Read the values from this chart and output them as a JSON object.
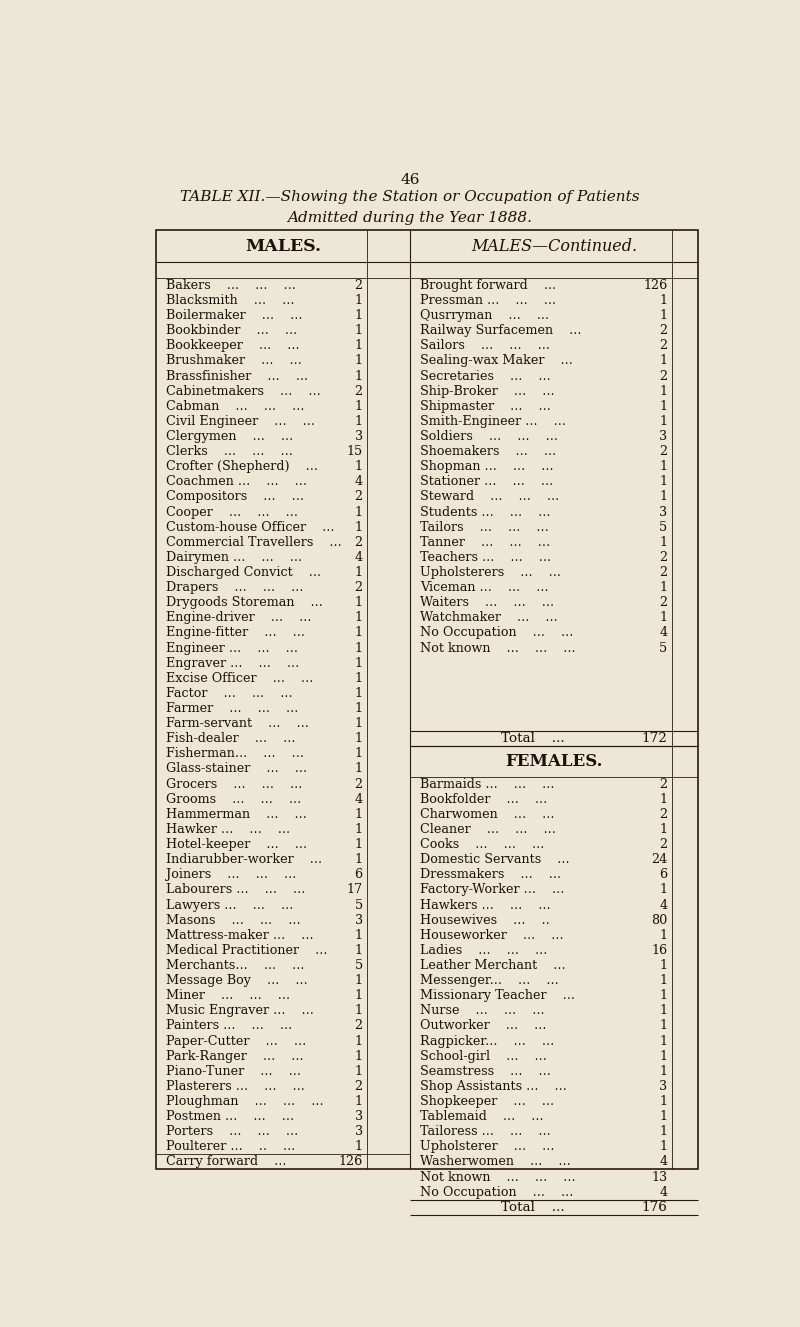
{
  "page_number": "46",
  "title_bold": "TABLE XII.",
  "title_italic": "—Showing the Station or Occupation of Patients",
  "title_line2": "Admitted during the Year 1888.",
  "bg_color": "#ede8d5",
  "text_color": "#1a1008",
  "males_left": [
    [
      "Bakers",
      "...",
      "...",
      "...",
      "2"
    ],
    [
      "Blacksmith",
      "...",
      "...",
      "",
      "1"
    ],
    [
      "Boilermaker",
      "...",
      "...",
      "",
      "1"
    ],
    [
      "Bookbinder",
      "...",
      "...",
      "",
      "1"
    ],
    [
      "Bookkeeper",
      "...",
      "...",
      "",
      "1"
    ],
    [
      "Brushmaker",
      "...",
      "...",
      "",
      "1"
    ],
    [
      "Brassfinisher",
      "...",
      "...",
      "",
      "1"
    ],
    [
      "Cabinetmakers",
      "...",
      "...",
      "",
      "2"
    ],
    [
      "Cabman",
      "...",
      "...",
      "...",
      "1"
    ],
    [
      "Civil Engineer",
      "...",
      "...",
      "",
      "1"
    ],
    [
      "Clergymen",
      "...",
      "...",
      "",
      "3"
    ],
    [
      "Clerks",
      "...",
      "...",
      "...",
      "15"
    ],
    [
      "Crofter (Shepherd)",
      "...",
      "",
      "",
      "1"
    ],
    [
      "Coachmen ...",
      "...",
      "...",
      "",
      "4"
    ],
    [
      "Compositors",
      "...",
      "...",
      "",
      "2"
    ],
    [
      "Cooper",
      "...",
      "...",
      "...",
      "1"
    ],
    [
      "Custom-house Officer",
      "...",
      "",
      "",
      "1"
    ],
    [
      "Commercial Travellers",
      "...",
      "",
      "",
      "2"
    ],
    [
      "Dairymen ...",
      "...",
      "...",
      "",
      "4"
    ],
    [
      "Discharged Convict",
      "...",
      "",
      "",
      "1"
    ],
    [
      "Drapers",
      "...",
      "...",
      "...",
      "2"
    ],
    [
      "Drygoods Storeman",
      "...",
      "",
      "",
      "1"
    ],
    [
      "Engine-driver",
      "...",
      "...",
      "",
      "1"
    ],
    [
      "Engine-fitter",
      "...",
      "...",
      "",
      "1"
    ],
    [
      "Engineer ...",
      "...",
      "...",
      "",
      "1"
    ],
    [
      "Engraver ...",
      "...",
      "...",
      "",
      "1"
    ],
    [
      "Excise Officer",
      "...",
      "...",
      "",
      "1"
    ],
    [
      "Factor",
      "...",
      "...",
      "...",
      "1"
    ],
    [
      "Farmer",
      "...",
      "...",
      "...",
      "1"
    ],
    [
      "Farm-servant",
      "...",
      "...",
      "",
      "1"
    ],
    [
      "Fish-dealer",
      "...",
      "...",
      "",
      "1"
    ],
    [
      "Fisherman...",
      "...",
      "...",
      "",
      "1"
    ],
    [
      "Glass-stainer",
      "...",
      "...",
      "",
      "1"
    ],
    [
      "Grocers",
      "...",
      "...",
      "...",
      "2"
    ],
    [
      "Grooms",
      "...",
      "...",
      "...",
      "4"
    ],
    [
      "Hammerman",
      "...",
      "...",
      "",
      "1"
    ],
    [
      "Hawker ...",
      "...",
      "...",
      "",
      "1"
    ],
    [
      "Hotel-keeper",
      "...",
      "...",
      "",
      "1"
    ],
    [
      "Indiarubber-worker",
      "...",
      "",
      "",
      "1"
    ],
    [
      "Joiners",
      "...",
      "...",
      "...",
      "6"
    ],
    [
      "Labourers ...",
      "...",
      "...",
      "",
      "17"
    ],
    [
      "Lawyers ...",
      "...",
      "...",
      "",
      "5"
    ],
    [
      "Masons",
      "...",
      "...",
      "...",
      "3"
    ],
    [
      "Mattress-maker ...",
      "...",
      "",
      "",
      "1"
    ],
    [
      "Medical Practitioner",
      "...",
      "",
      "",
      "1"
    ],
    [
      "Merchants...",
      "...",
      "...",
      "",
      "5"
    ],
    [
      "Message Boy",
      "...",
      "...",
      "",
      "1"
    ],
    [
      "Miner",
      "...",
      "...",
      "...",
      "1"
    ],
    [
      "Music Engraver ...",
      "...",
      "",
      "",
      "1"
    ],
    [
      "Painters ...",
      "...",
      "...",
      "",
      "2"
    ],
    [
      "Paper-Cutter",
      "...",
      "...",
      "",
      "1"
    ],
    [
      "Park-Ranger",
      "...",
      "...",
      "",
      "1"
    ],
    [
      "Piano-Tuner",
      "...",
      "...",
      "",
      "1"
    ],
    [
      "Plasterers ...",
      "...",
      "...",
      "",
      "2"
    ],
    [
      "Ploughman",
      "...",
      "...",
      "...",
      "1"
    ],
    [
      "Postmen ...",
      "...",
      "...",
      "",
      "3"
    ],
    [
      "Porters",
      "...",
      "...",
      "...",
      "3"
    ],
    [
      "Poulterer ...",
      "..",
      "...",
      "",
      "1"
    ]
  ],
  "males_right": [
    [
      "Brought forward",
      "...",
      "",
      "126"
    ],
    [
      "Pressman ...",
      "...",
      "...",
      "1"
    ],
    [
      "Qusrryman",
      "...",
      "...",
      "1"
    ],
    [
      "Railway Surfacemen",
      "...",
      "",
      "2"
    ],
    [
      "Sailors",
      "...",
      "...",
      "2"
    ],
    [
      "Sealing-wax Maker",
      "...",
      "",
      "1"
    ],
    [
      "Secretaries",
      "...",
      "...",
      "2"
    ],
    [
      "Ship-Broker",
      "...",
      "...",
      "1"
    ],
    [
      "Shipmaster",
      "...",
      "...",
      "1"
    ],
    [
      "Smith-Engineer ...",
      "...",
      "",
      "1"
    ],
    [
      "Soldiers",
      "...",
      "...",
      "3"
    ],
    [
      "Shoemakers",
      "...",
      "...",
      "2"
    ],
    [
      "Shopman ...",
      "...",
      "...",
      "1"
    ],
    [
      "Stationer ...",
      "...",
      "...",
      "1"
    ],
    [
      "Steward",
      "...",
      "...",
      "1"
    ],
    [
      "Students ...",
      "...",
      "...",
      "3"
    ],
    [
      "Tailors",
      "...",
      "...",
      "5"
    ],
    [
      "Tanner",
      "...",
      "...",
      "1"
    ],
    [
      "Teachers ...",
      "...",
      "...",
      "2"
    ],
    [
      "Upholsterers",
      "...",
      "...",
      "2"
    ],
    [
      "Viceman ...",
      "...",
      "...",
      "1"
    ],
    [
      "Waiters",
      "...",
      "...",
      "2"
    ],
    [
      "Watchmaker",
      "...",
      "...",
      "1"
    ],
    [
      "No Occupation",
      "...",
      "...",
      "4"
    ],
    [
      "Not known",
      "...",
      "...",
      "5"
    ]
  ],
  "females": [
    [
      "Barmaids ...",
      "...",
      "...",
      "2"
    ],
    [
      "Bookfolder",
      "...",
      "...",
      "1"
    ],
    [
      "Charwomen",
      "...",
      "...",
      "2"
    ],
    [
      "Cleaner",
      "...",
      "...",
      "1"
    ],
    [
      "Cooks",
      "...",
      "...",
      "2"
    ],
    [
      "Domestic Servants",
      "...",
      "",
      "24"
    ],
    [
      "Dressmakers",
      "...",
      "...",
      "6"
    ],
    [
      "Factory-Worker ...",
      "...",
      "",
      "1"
    ],
    [
      "Hawkers ...",
      "...",
      "...",
      "4"
    ],
    [
      "Housewives",
      "...",
      "..",
      "80"
    ],
    [
      "Houseworker",
      "...",
      "...",
      "1"
    ],
    [
      "Ladies",
      "...",
      "...",
      "16"
    ],
    [
      "Leather Merchant",
      "...",
      "",
      "1"
    ],
    [
      "Messenger...",
      "...",
      "...",
      "1"
    ],
    [
      "Missionary Teacher",
      "...",
      "",
      "1"
    ],
    [
      "Nurse",
      "...",
      "...",
      "1"
    ],
    [
      "Outworker",
      "...",
      "...",
      "1"
    ],
    [
      "Ragpicker...",
      "...",
      "...",
      "1"
    ],
    [
      "School-girl",
      "...",
      "...",
      "1"
    ],
    [
      "Seamstress",
      "...",
      "...",
      "1"
    ],
    [
      "Shop Assistants ...",
      "...",
      "",
      "3"
    ],
    [
      "Shopkeeper",
      "...",
      "...",
      "1"
    ],
    [
      "Tablemaid",
      "...",
      "...",
      "1"
    ],
    [
      "Tailoress ...",
      "...",
      "...",
      "1"
    ],
    [
      "Upholsterer",
      "...",
      "...",
      "1"
    ],
    [
      "Washerwomen",
      "...",
      "...",
      "4"
    ],
    [
      "Not known",
      "...",
      "...",
      "13"
    ],
    [
      "No Occupation",
      "...",
      "...",
      "4"
    ]
  ]
}
